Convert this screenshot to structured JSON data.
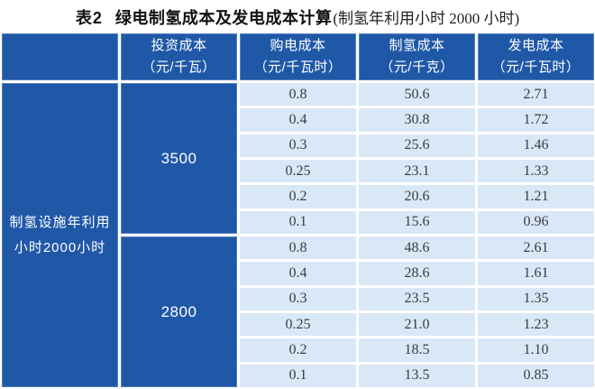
{
  "colors": {
    "header_blue": "#2058A8",
    "row_bg": "#D9E8F7",
    "title_text": "#111111",
    "cell_text": "#3c3c3c"
  },
  "title": {
    "prefix": "表2",
    "main": "绿电制氢成本及发电成本计算",
    "note": "(制氢年利用小时 2000 小时)"
  },
  "table": {
    "row_header": {
      "line1": "制氢设施年利用",
      "line2": "小时2000小时"
    },
    "columns": [
      {
        "label": "投资成本",
        "unit": "（元/千瓦）"
      },
      {
        "label": "购电成本",
        "unit": "（元/千瓦时）"
      },
      {
        "label": "制氢成本",
        "unit": "（元/千克）"
      },
      {
        "label": "发电成本",
        "unit": "（元/千瓦时）"
      }
    ],
    "groups": [
      {
        "investment": "3500",
        "rows": [
          {
            "power": "0.8",
            "h2": "50.6",
            "gen": "2.71"
          },
          {
            "power": "0.4",
            "h2": "30.8",
            "gen": "1.72"
          },
          {
            "power": "0.3",
            "h2": "25.6",
            "gen": "1.46"
          },
          {
            "power": "0.25",
            "h2": "23.1",
            "gen": "1.33"
          },
          {
            "power": "0.2",
            "h2": "20.6",
            "gen": "1.21"
          },
          {
            "power": "0.1",
            "h2": "15.6",
            "gen": "0.96"
          }
        ]
      },
      {
        "investment": "2800",
        "rows": [
          {
            "power": "0.8",
            "h2": "48.6",
            "gen": "2.61"
          },
          {
            "power": "0.4",
            "h2": "28.6",
            "gen": "1.61"
          },
          {
            "power": "0.3",
            "h2": "23.5",
            "gen": "1.35"
          },
          {
            "power": "0.25",
            "h2": "21.0",
            "gen": "1.23"
          },
          {
            "power": "0.2",
            "h2": "18.5",
            "gen": "1.10"
          },
          {
            "power": "0.1",
            "h2": "13.5",
            "gen": "0.85"
          }
        ]
      }
    ]
  },
  "chart_data": {
    "type": "table",
    "title": "表2 绿电制氢成本及发电成本计算(制氢年利用小时 2000 小时)",
    "row_group_label": "制氢设施年利用小时2000小时",
    "columns": [
      "投资成本（元/千瓦）",
      "购电成本（元/千瓦时）",
      "制氢成本（元/千克）",
      "发电成本（元/千瓦时）"
    ],
    "rows": [
      [
        "3500",
        "0.8",
        "50.6",
        "2.71"
      ],
      [
        "3500",
        "0.4",
        "30.8",
        "1.72"
      ],
      [
        "3500",
        "0.3",
        "25.6",
        "1.46"
      ],
      [
        "3500",
        "0.25",
        "23.1",
        "1.33"
      ],
      [
        "3500",
        "0.2",
        "20.6",
        "1.21"
      ],
      [
        "3500",
        "0.1",
        "15.6",
        "0.96"
      ],
      [
        "2800",
        "0.8",
        "48.6",
        "2.61"
      ],
      [
        "2800",
        "0.4",
        "28.6",
        "1.61"
      ],
      [
        "2800",
        "0.3",
        "23.5",
        "1.35"
      ],
      [
        "2800",
        "0.25",
        "21.0",
        "1.23"
      ],
      [
        "2800",
        "0.2",
        "18.5",
        "1.10"
      ],
      [
        "2800",
        "0.1",
        "13.5",
        "0.85"
      ]
    ]
  }
}
